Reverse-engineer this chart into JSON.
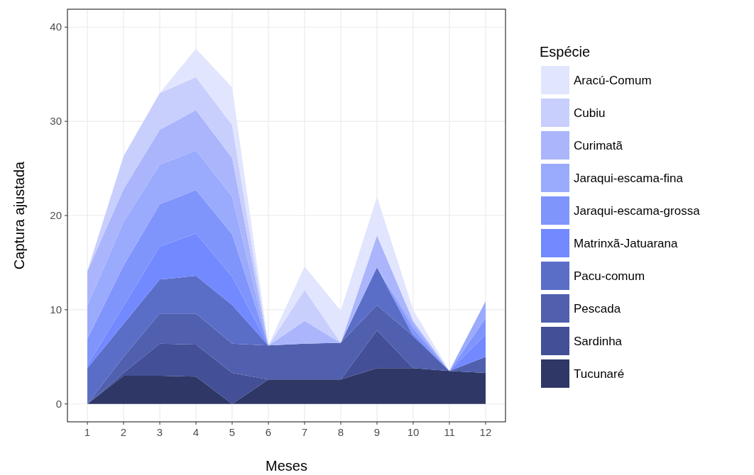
{
  "chart_data": {
    "type": "area",
    "stacked": true,
    "xlabel": "Meses",
    "ylabel": "Captura ajustada",
    "legend_title": "Espécie",
    "legend": "right",
    "grid": true,
    "x": [
      1,
      2,
      3,
      4,
      5,
      6,
      7,
      8,
      9,
      10,
      11,
      12
    ],
    "xlim": [
      0.45,
      12.55
    ],
    "xticks": [
      1,
      2,
      3,
      4,
      5,
      6,
      7,
      8,
      9,
      10,
      11,
      12
    ],
    "ylim": [
      -1.9,
      41.9
    ],
    "yticks": [
      0,
      10,
      20,
      30,
      40
    ],
    "series": [
      {
        "name": "Tucunaré",
        "color": "#2e3765",
        "values": [
          0,
          3.0,
          3.0,
          2.9,
          0,
          2.6,
          2.6,
          2.6,
          3.8,
          3.8,
          3.5,
          3.3
        ]
      },
      {
        "name": "Sardinha",
        "color": "#434f96",
        "values": [
          0,
          0.3,
          3.4,
          3.4,
          3.3,
          0,
          0,
          0,
          4.0,
          0,
          0,
          0
        ]
      },
      {
        "name": "Pescada",
        "color": "#505fae",
        "values": [
          0,
          1.7,
          3.2,
          3.3,
          3.1,
          3.6,
          3.8,
          3.9,
          2.7,
          3.4,
          0,
          1.7
        ]
      },
      {
        "name": "Pacu-comum",
        "color": "#5a6ec8",
        "values": [
          3.8,
          3.5,
          3.6,
          4.0,
          4.1,
          0,
          0,
          0,
          4.0,
          0,
          0,
          0
        ]
      },
      {
        "name": "Matrinxã-Jatuarana",
        "color": "#7389ff",
        "values": [
          0.3,
          1.9,
          3.5,
          4.5,
          3.0,
          0,
          0,
          0,
          0,
          0.3,
          0,
          2.4
        ]
      },
      {
        "name": "Jaraqui-escama-grossa",
        "color": "#7f95fc",
        "values": [
          2.8,
          4.3,
          4.5,
          4.6,
          4.5,
          0,
          0,
          0,
          0,
          0.5,
          0,
          1.7
        ]
      },
      {
        "name": "Jaraqui-escama-fina",
        "color": "#9aaafd",
        "values": [
          3.5,
          4.6,
          4.2,
          4.2,
          4.0,
          0,
          0,
          0,
          0,
          0.5,
          0,
          1.8
        ]
      },
      {
        "name": "Curimatã",
        "color": "#aab5fc",
        "values": [
          3.7,
          3.5,
          3.7,
          4.3,
          4.1,
          0,
          2.4,
          0,
          3.4,
          0.3,
          0,
          0
        ]
      },
      {
        "name": "Cubiu",
        "color": "#c8cffd",
        "values": [
          0,
          3.5,
          3.9,
          3.5,
          3.5,
          0,
          3.3,
          0,
          0,
          0,
          0,
          0
        ]
      },
      {
        "name": "Aracú-Comum",
        "color": "#e1e5fe",
        "values": [
          0,
          0,
          0,
          3.0,
          4.0,
          0,
          2.5,
          3.4,
          4.1,
          1.2,
          0,
          0
        ]
      }
    ]
  }
}
